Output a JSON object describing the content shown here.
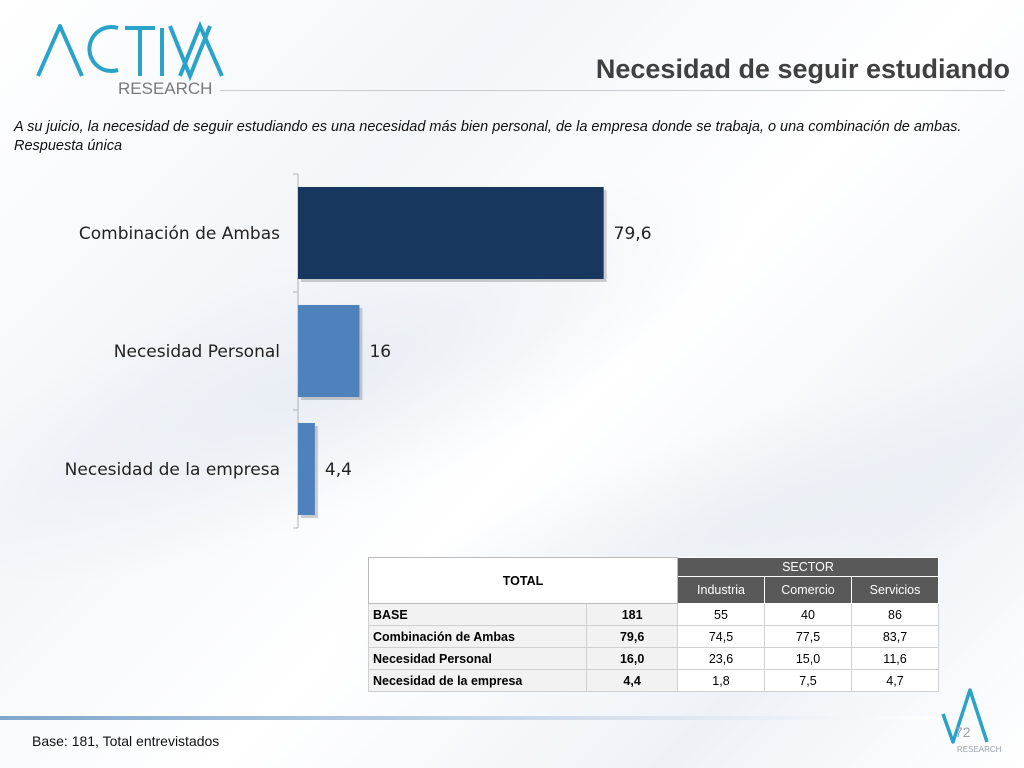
{
  "header": {
    "logo_text_main": "ACTIVA",
    "logo_text_sub": "RESEARCH",
    "title": "Necesidad de seguir estudiando"
  },
  "subtitle": "A su juicio, la necesidad de seguir estudiando  es una necesidad más bien personal, de la empresa donde se trabaja, o una combinación de ambas. Respuesta única",
  "chart_data": {
    "type": "bar",
    "orientation": "horizontal",
    "categories": [
      "Combinación de Ambas",
      "Necesidad Personal",
      "Necesidad de la empresa"
    ],
    "values": [
      79.6,
      16,
      4.4
    ],
    "value_labels": [
      "79,6",
      "16",
      "4,4"
    ],
    "colors": [
      "#17375e",
      "#4f81bd",
      "#4f81bd"
    ],
    "xlim": [
      0,
      100
    ],
    "grid": false,
    "legend": "none"
  },
  "table": {
    "total_header": "TOTAL",
    "sector_header": "SECTOR",
    "sector_columns": [
      "Industria",
      "Comercio",
      "Servicios"
    ],
    "rows": [
      {
        "label": "BASE",
        "total": "181",
        "values": [
          "55",
          "40",
          "86"
        ]
      },
      {
        "label": "Combinación de Ambas",
        "total": "79,6",
        "values": [
          "74,5",
          "77,5",
          "83,7"
        ]
      },
      {
        "label": "Necesidad Personal",
        "total": "16,0",
        "values": [
          "23,6",
          "15,0",
          "11,6"
        ]
      },
      {
        "label": "Necesidad de la empresa",
        "total": "4,4",
        "values": [
          "1,8",
          "7,5",
          "4,7"
        ]
      }
    ]
  },
  "footer": {
    "base_note": "Base: 181, Total entrevistados",
    "page_number": "72",
    "mini_logo_text": "RESEARCH"
  }
}
